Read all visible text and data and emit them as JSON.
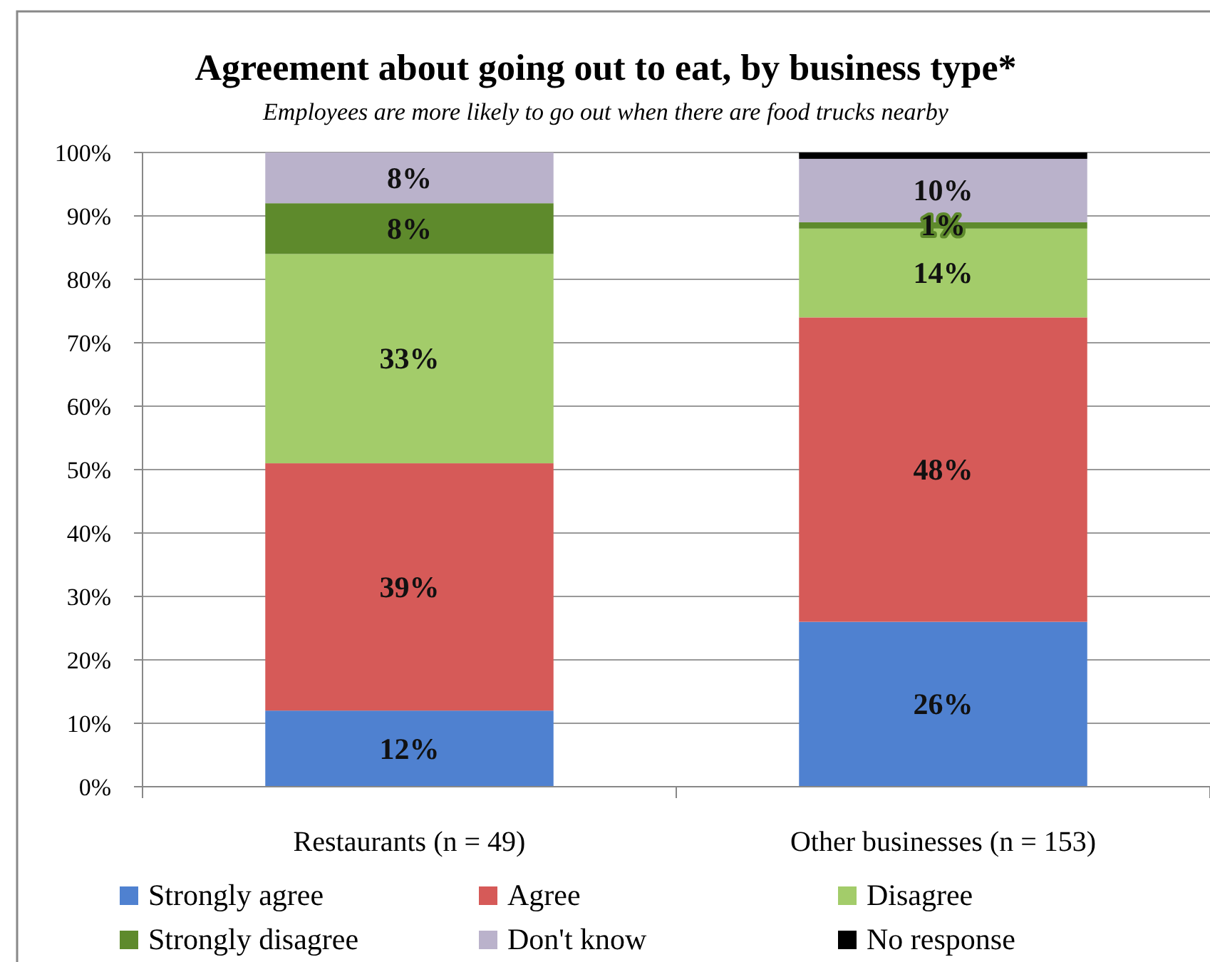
{
  "chart_data": {
    "type": "bar",
    "stacked": true,
    "title": "Agreement about going out to eat, by business type*",
    "subtitle": "Employees are more likely to go out when there are food trucks nearby",
    "categories": [
      "Restaurants (n = 49)",
      "Other businesses (n = 153)"
    ],
    "series": [
      {
        "name": "Strongly agree",
        "color": "#4f81d0",
        "values": [
          12,
          26
        ],
        "value_labels": [
          "12%",
          "26%"
        ]
      },
      {
        "name": "Agree",
        "color": "#d65a58",
        "values": [
          39,
          48
        ],
        "value_labels": [
          "39%",
          "48%"
        ]
      },
      {
        "name": "Disagree",
        "color": "#a3cc6a",
        "values": [
          33,
          14
        ],
        "value_labels": [
          "33%",
          "14%"
        ]
      },
      {
        "name": "Strongly disagree",
        "color": "#5e8a2c",
        "values": [
          8,
          1
        ],
        "value_labels": [
          "8%",
          "1%"
        ]
      },
      {
        "name": "Don't know",
        "color": "#bab2cb",
        "values": [
          8,
          10
        ],
        "value_labels": [
          "8%",
          "10%"
        ]
      },
      {
        "name": "No response",
        "color": "#000000",
        "values": [
          0,
          1
        ],
        "value_labels": [
          null,
          null
        ]
      }
    ],
    "ylim": [
      0,
      100
    ],
    "yticks": [
      {
        "value": 0,
        "label": "0%"
      },
      {
        "value": 10,
        "label": "10%"
      },
      {
        "value": 20,
        "label": "20%"
      },
      {
        "value": 30,
        "label": "30%"
      },
      {
        "value": 40,
        "label": "40%"
      },
      {
        "value": 50,
        "label": "50%"
      },
      {
        "value": 60,
        "label": "60%"
      },
      {
        "value": 70,
        "label": "70%"
      },
      {
        "value": 80,
        "label": "80%"
      },
      {
        "value": 90,
        "label": "90%"
      },
      {
        "value": 100,
        "label": "100%"
      }
    ],
    "grid": "y",
    "legend": "bottom"
  }
}
